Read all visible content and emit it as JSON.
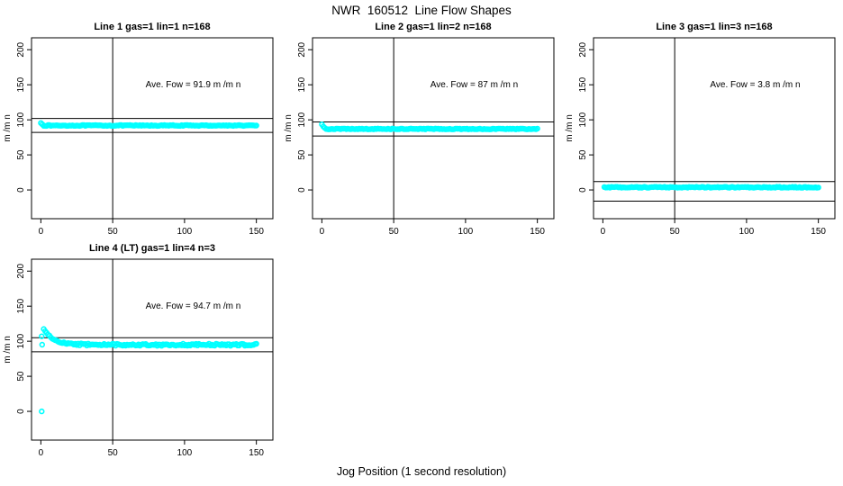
{
  "figure": {
    "title": "NWR  160512  Line Flow Shapes",
    "xlabel": "Jog Position (1 second resolution)"
  },
  "colors": {
    "points": "#00FFFF",
    "axis": "#000000",
    "background": "#FFFFFF",
    "text": "#000000"
  },
  "chart_data": [
    {
      "type": "scatter",
      "title": "Line 1 gas=1 lin=1 n=168",
      "gas": 1,
      "lin": 1,
      "n": 168,
      "ave_flow": 91.9,
      "annotation": {
        "text": "Ave. Fow =  91.9  m /m n",
        "x": 106,
        "y": 150
      },
      "ylabel": "m /m n",
      "xlim": [
        -6.5,
        161.5
      ],
      "ylim": [
        -41,
        217
      ],
      "xticks": [
        0,
        50,
        100,
        150
      ],
      "yticks": [
        0,
        50,
        100,
        150,
        200
      ],
      "vline_x": 50,
      "hlines": [
        102,
        82
      ],
      "series": {
        "kind": "band",
        "x_start": 0,
        "x_end": 150,
        "step": 1,
        "y": 91.9,
        "jitter": 0.6,
        "lead_in": [
          [
            0,
            95.5
          ],
          [
            1,
            93.5
          ]
        ]
      }
    },
    {
      "type": "scatter",
      "title": "Line 2 gas=1 lin=2 n=168",
      "gas": 1,
      "lin": 2,
      "n": 168,
      "ave_flow": 87,
      "annotation": {
        "text": "Ave. Fow =  87  m /m n",
        "x": 106,
        "y": 150
      },
      "ylabel": "m /m n",
      "xlim": [
        -6.5,
        161.5
      ],
      "ylim": [
        -41,
        217
      ],
      "xticks": [
        0,
        50,
        100,
        150
      ],
      "yticks": [
        0,
        50,
        100,
        150,
        200
      ],
      "vline_x": 50,
      "hlines": [
        97,
        77
      ],
      "series": {
        "kind": "band",
        "x_start": 0,
        "x_end": 150,
        "step": 1,
        "y": 87,
        "jitter": 0.6,
        "lead_in": [
          [
            0,
            93.5
          ],
          [
            1,
            90.5
          ],
          [
            2,
            88.5
          ]
        ]
      }
    },
    {
      "type": "scatter",
      "title": "Line 3 gas=1 lin=3 n=168",
      "gas": 1,
      "lin": 3,
      "n": 168,
      "ave_flow": 3.8,
      "annotation": {
        "text": "Ave. Fow =  3.8  m /m n",
        "x": 106,
        "y": 150
      },
      "ylabel": "m /m n",
      "xlim": [
        -6.5,
        161.5
      ],
      "ylim": [
        -41,
        217
      ],
      "xticks": [
        0,
        50,
        100,
        150
      ],
      "yticks": [
        0,
        50,
        100,
        150,
        200
      ],
      "vline_x": 50,
      "hlines": [
        12,
        -16
      ],
      "series": {
        "kind": "band",
        "x_start": 1,
        "x_end": 150,
        "step": 1,
        "y": 3.8,
        "jitter": 0.7,
        "lead_in": []
      }
    },
    {
      "type": "scatter",
      "title": "Line 4 (LT) gas=1 lin=4 n=3",
      "gas": 1,
      "lin": 4,
      "n": 3,
      "ave_flow": 94.7,
      "annotation": {
        "text": "Ave. Fow =  94.7  m /m n",
        "x": 106,
        "y": 150
      },
      "ylabel": "m /m n",
      "xlim": [
        -6.5,
        161.5
      ],
      "ylim": [
        -41,
        217
      ],
      "xticks": [
        0,
        50,
        100,
        150
      ],
      "yticks": [
        0,
        50,
        100,
        150,
        200
      ],
      "vline_x": 50,
      "hlines": [
        105,
        85
      ],
      "series": {
        "kind": "decay",
        "x_start": 2,
        "x_end": 150,
        "step": 1,
        "y_end": 95,
        "amp": 23,
        "tau": 6.5,
        "jitter": 1.5,
        "outliers": [
          [
            0.6,
            107
          ],
          [
            0.9,
            95
          ],
          [
            0.6,
            0
          ]
        ]
      }
    }
  ]
}
